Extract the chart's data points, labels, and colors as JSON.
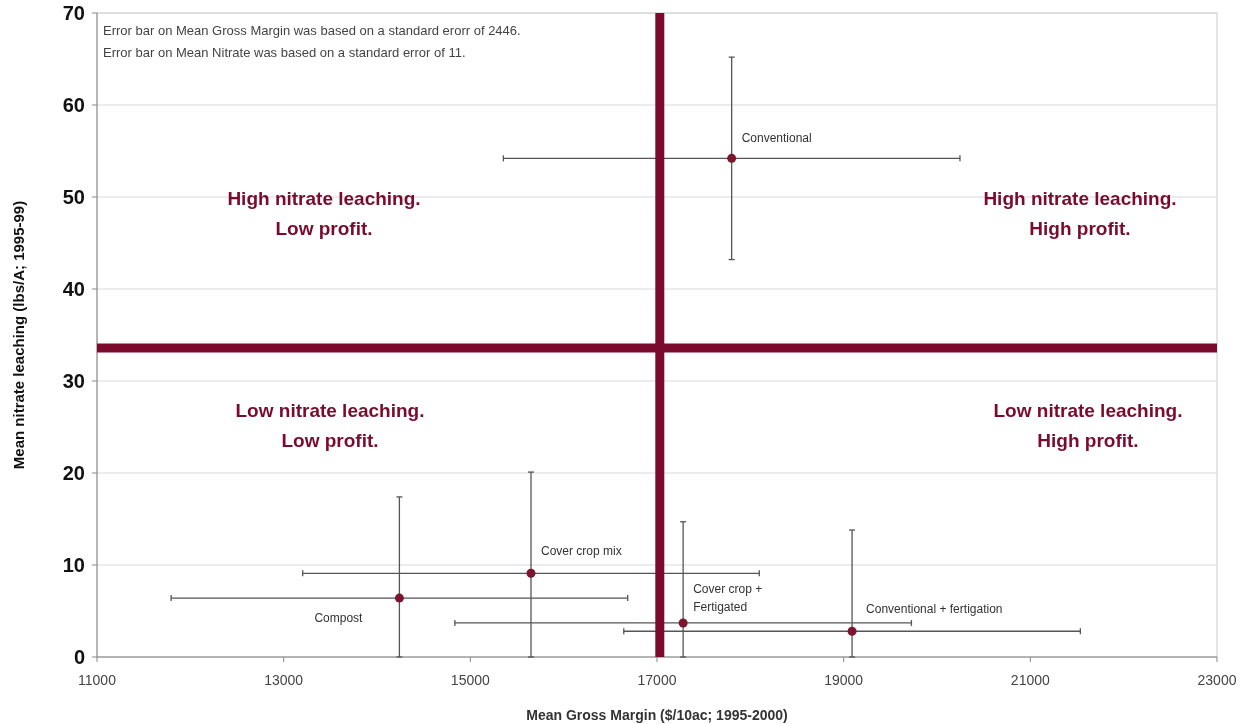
{
  "chart_data": {
    "type": "scatter",
    "xlabel": "Mean Gross Margin ($/10ac; 1995-2000)",
    "ylabel": "Mean nitrate leaching (lbs/A; 1995-99)",
    "xlim": [
      11000,
      23000
    ],
    "xticks": [
      11000,
      13000,
      15000,
      17000,
      19000,
      21000,
      23000
    ],
    "ylim": [
      0,
      70
    ],
    "yticks": [
      0,
      10,
      20,
      30,
      40,
      50,
      60,
      70
    ],
    "grid": "y",
    "marker": "circle",
    "series": [
      {
        "name": "Conventional",
        "color": "#7b1530",
        "x": [
          17800
        ],
        "values": [
          54.2
        ],
        "errors": [
          11
        ],
        "xerrors": [
          2446
        ]
      },
      {
        "name": "Cover crop mix",
        "color": "#7b1530",
        "x": [
          15650
        ],
        "values": [
          9.1
        ],
        "errors": [
          [
            0,
            20.1
          ]
        ],
        "xerrors": [
          2446
        ]
      },
      {
        "name": "Compost",
        "color": "#7b1530",
        "x": [
          14240
        ],
        "values": [
          6.4
        ],
        "errors": [
          [
            0,
            17.4
          ]
        ],
        "xerrors": [
          2446
        ]
      },
      {
        "name": "Cover crop +\nFertigated",
        "color": "#7b1530",
        "x": [
          17280
        ],
        "values": [
          3.7
        ],
        "errors": [
          [
            0,
            14.7
          ]
        ],
        "xerrors": [
          2446
        ]
      },
      {
        "name": "Conventional + fertigation",
        "color": "#7b1530",
        "x": [
          19090
        ],
        "values": [
          2.8
        ],
        "errors": [
          [
            0,
            13.8
          ]
        ],
        "xerrors": [
          2446
        ]
      }
    ],
    "ref_lines": [
      {
        "axis": "x",
        "value": 17030,
        "color": "#7a0b2e"
      },
      {
        "axis": "y",
        "value": 33.6,
        "color": "#7a0b2e"
      }
    ],
    "annotations": [
      "Error bar on Mean Gross Margin was based on a standard erorr of  2446.",
      "Error bar on Mean Nitrate was based on a standard error of  11.",
      "High nitrate leaching.\nLow profit.",
      "High nitrate leaching.\nHigh profit.",
      "Low nitrate leaching.\nLow profit.",
      "Low nitrate leaching.\nHigh profit."
    ]
  }
}
